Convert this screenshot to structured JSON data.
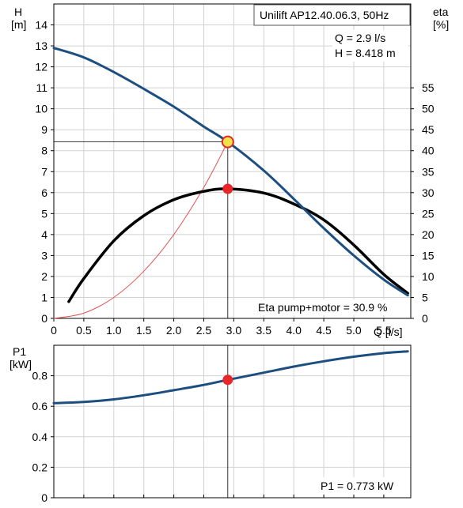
{
  "chart_data": [
    {
      "type": "line",
      "title": "Unilift AP12.40.06.3, 50Hz",
      "readout": {
        "q": "Q = 2.9 l/s",
        "h": "H = 8.418 m",
        "eta": "Eta pump+motor = 30.9 %"
      },
      "left_axis": {
        "label": "H",
        "unit": "[m]",
        "ylim": [
          0,
          15
        ],
        "ticks": [
          "0",
          "1",
          "2",
          "3",
          "4",
          "5",
          "6",
          "7",
          "8",
          "9",
          "10",
          "11",
          "12",
          "13",
          "14"
        ]
      },
      "right_axis": {
        "label": "eta",
        "unit": "[%]",
        "ylim": [
          0,
          75
        ],
        "ticks": [
          "0",
          "5",
          "10",
          "15",
          "20",
          "25",
          "30",
          "35",
          "40",
          "45",
          "50",
          "55"
        ]
      },
      "x_axis": {
        "label": "Q [l/s]",
        "xlim": [
          0,
          5.95
        ],
        "ticks": [
          "0",
          "0.5",
          "1.0",
          "1.5",
          "2.0",
          "2.5",
          "3.0",
          "3.5",
          "4.0",
          "4.5",
          "5.0",
          "5.5"
        ]
      },
      "grid": true,
      "series": [
        {
          "axis": "left",
          "color": "#1c4e80",
          "x": [
            0,
            0.5,
            1.0,
            1.5,
            2.0,
            2.5,
            2.9,
            3.5,
            4.0,
            4.5,
            5.0,
            5.5,
            5.9
          ],
          "y": [
            12.9,
            12.45,
            11.75,
            10.95,
            10.1,
            9.15,
            8.418,
            7.05,
            5.7,
            4.3,
            3.0,
            1.85,
            1.1
          ]
        },
        {
          "axis": "right",
          "color": "#000000",
          "x": [
            0.25,
            0.5,
            1.0,
            1.5,
            2.0,
            2.5,
            2.9,
            3.5,
            4.0,
            4.5,
            5.0,
            5.5,
            5.9
          ],
          "y": [
            4,
            9.5,
            18.5,
            24.5,
            28.3,
            30.3,
            30.9,
            29.9,
            27.3,
            23.5,
            17.5,
            10.5,
            6
          ]
        },
        {
          "axis": "left",
          "color": "#e05555",
          "x": [
            0,
            0.5,
            1.0,
            1.5,
            2.0,
            2.5,
            2.9
          ],
          "y": [
            0,
            0.25,
            1.0,
            2.25,
            4.0,
            6.25,
            8.418
          ]
        }
      ],
      "duty_point": {
        "x": 2.9,
        "h": 8.418,
        "eta": 30.9
      }
    },
    {
      "type": "line",
      "readout": "P1 = 0.773 kW",
      "y_axis": {
        "label": "P1",
        "unit": "[kW]",
        "ylim": [
          0,
          1.0
        ],
        "ticks": [
          "0",
          "0.2",
          "0.4",
          "0.6",
          "0.8"
        ]
      },
      "xlim": [
        0,
        5.95
      ],
      "grid": true,
      "series": [
        {
          "color": "#1c4e80",
          "x": [
            0,
            0.5,
            1.0,
            1.5,
            2.0,
            2.5,
            2.9,
            3.5,
            4.0,
            4.5,
            5.0,
            5.5,
            5.9
          ],
          "y": [
            0.62,
            0.628,
            0.645,
            0.672,
            0.705,
            0.74,
            0.773,
            0.82,
            0.86,
            0.895,
            0.925,
            0.948,
            0.96
          ]
        }
      ],
      "duty_point": {
        "x": 2.9,
        "y": 0.773
      }
    }
  ]
}
